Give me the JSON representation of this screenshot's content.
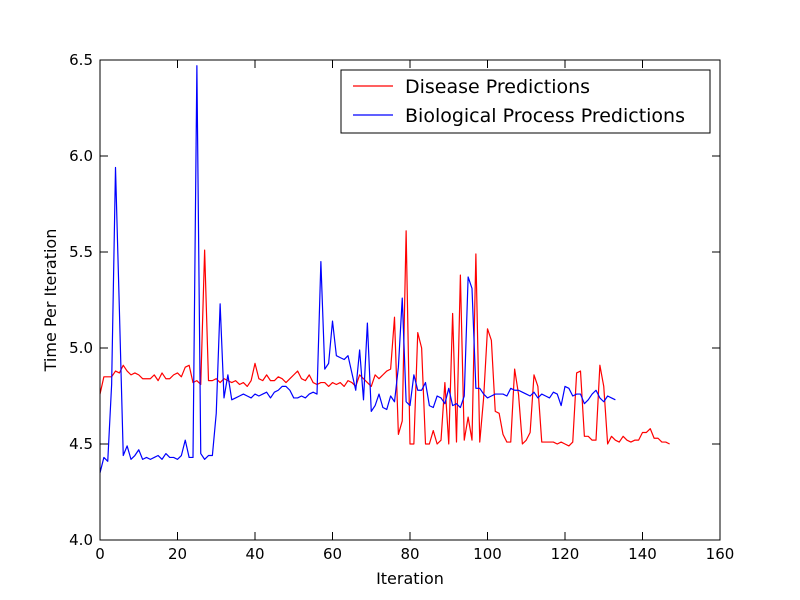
{
  "chart_data": {
    "type": "line",
    "xlabel": "Iteration",
    "ylabel": "Time Per Iteration",
    "xlim": [
      0,
      160
    ],
    "ylim": [
      4.0,
      6.5
    ],
    "x_ticks": [
      0,
      20,
      40,
      60,
      80,
      100,
      120,
      140,
      160
    ],
    "y_ticks": [
      4.0,
      4.5,
      5.0,
      5.5,
      6.0,
      6.5
    ],
    "x_tick_labels": [
      "0",
      "20",
      "40",
      "60",
      "80",
      "100",
      "120",
      "140",
      "160"
    ],
    "y_tick_labels": [
      "4.0",
      "4.5",
      "5.0",
      "5.5",
      "6.0",
      "6.5"
    ],
    "grid": false,
    "legend_position": "top-right",
    "series": [
      {
        "name": "Disease Predictions",
        "color": "#ff0000",
        "x_start": 0,
        "values": [
          4.76,
          4.85,
          4.85,
          4.85,
          4.88,
          4.87,
          4.91,
          4.88,
          4.86,
          4.87,
          4.86,
          4.84,
          4.84,
          4.84,
          4.86,
          4.83,
          4.87,
          4.84,
          4.84,
          4.86,
          4.87,
          4.85,
          4.9,
          4.91,
          4.82,
          4.83,
          4.81,
          5.51,
          4.83,
          4.83,
          4.84,
          4.82,
          4.84,
          4.83,
          4.82,
          4.83,
          4.81,
          4.82,
          4.8,
          4.83,
          4.92,
          4.84,
          4.83,
          4.86,
          4.83,
          4.83,
          4.85,
          4.84,
          4.82,
          4.84,
          4.86,
          4.88,
          4.84,
          4.83,
          4.86,
          4.82,
          4.81,
          4.82,
          4.82,
          4.8,
          4.82,
          4.81,
          4.82,
          4.8,
          4.83,
          4.82,
          4.8,
          4.86,
          4.84,
          4.82,
          4.8,
          4.86,
          4.84,
          4.86,
          4.88,
          4.89,
          5.16,
          4.55,
          4.62,
          5.61,
          4.5,
          4.5,
          5.08,
          5.0,
          4.5,
          4.5,
          4.57,
          4.5,
          4.52,
          4.82,
          4.5,
          5.18,
          4.51,
          5.38,
          4.52,
          4.64,
          4.52,
          5.49,
          4.51,
          4.74,
          5.1,
          5.04,
          4.67,
          4.66,
          4.55,
          4.51,
          4.51,
          4.89,
          4.76,
          4.5,
          4.52,
          4.56,
          4.86,
          4.8,
          4.51,
          4.51,
          4.51,
          4.51,
          4.5,
          4.51,
          4.5,
          4.49,
          4.51,
          4.87,
          4.88,
          4.54,
          4.54,
          4.52,
          4.52,
          4.91,
          4.8,
          4.5,
          4.54,
          4.52,
          4.51,
          4.54,
          4.52,
          4.51,
          4.52,
          4.52,
          4.56,
          4.56,
          4.58,
          4.53,
          4.53,
          4.51,
          4.51,
          4.5
        ]
      },
      {
        "name": "Biological Process Predictions",
        "color": "#0000ff",
        "x_start": 0,
        "values": [
          4.35,
          4.43,
          4.41,
          4.81,
          5.94,
          5.2,
          4.44,
          4.49,
          4.42,
          4.44,
          4.47,
          4.42,
          4.43,
          4.42,
          4.43,
          4.44,
          4.42,
          4.45,
          4.43,
          4.43,
          4.42,
          4.44,
          4.52,
          4.43,
          4.43,
          6.47,
          4.45,
          4.42,
          4.44,
          4.44,
          4.66,
          5.23,
          4.74,
          4.86,
          4.73,
          4.74,
          4.75,
          4.76,
          4.75,
          4.74,
          4.76,
          4.75,
          4.76,
          4.77,
          4.74,
          4.77,
          4.78,
          4.8,
          4.8,
          4.78,
          4.74,
          4.74,
          4.75,
          4.74,
          4.76,
          4.77,
          4.76,
          5.45,
          4.89,
          4.92,
          5.14,
          4.96,
          4.95,
          4.94,
          4.96,
          4.87,
          4.78,
          4.99,
          4.73,
          5.13,
          4.67,
          4.7,
          4.76,
          4.69,
          4.68,
          4.75,
          4.72,
          4.9,
          5.26,
          4.72,
          4.7,
          4.86,
          4.78,
          4.78,
          4.82,
          4.7,
          4.69,
          4.75,
          4.74,
          4.71,
          4.79,
          4.7,
          4.71,
          4.69,
          4.75,
          5.37,
          5.31,
          4.79,
          4.79,
          4.76,
          4.74,
          4.75,
          4.76,
          4.76,
          4.76,
          4.75,
          4.79,
          4.78,
          4.78,
          4.77,
          4.76,
          4.75,
          4.77,
          4.74,
          4.76,
          4.75,
          4.74,
          4.77,
          4.76,
          4.7,
          4.8,
          4.79,
          4.75,
          4.76,
          4.76,
          4.71,
          4.73,
          4.76,
          4.78,
          4.74,
          4.72,
          4.75,
          4.74,
          4.73
        ]
      }
    ]
  }
}
